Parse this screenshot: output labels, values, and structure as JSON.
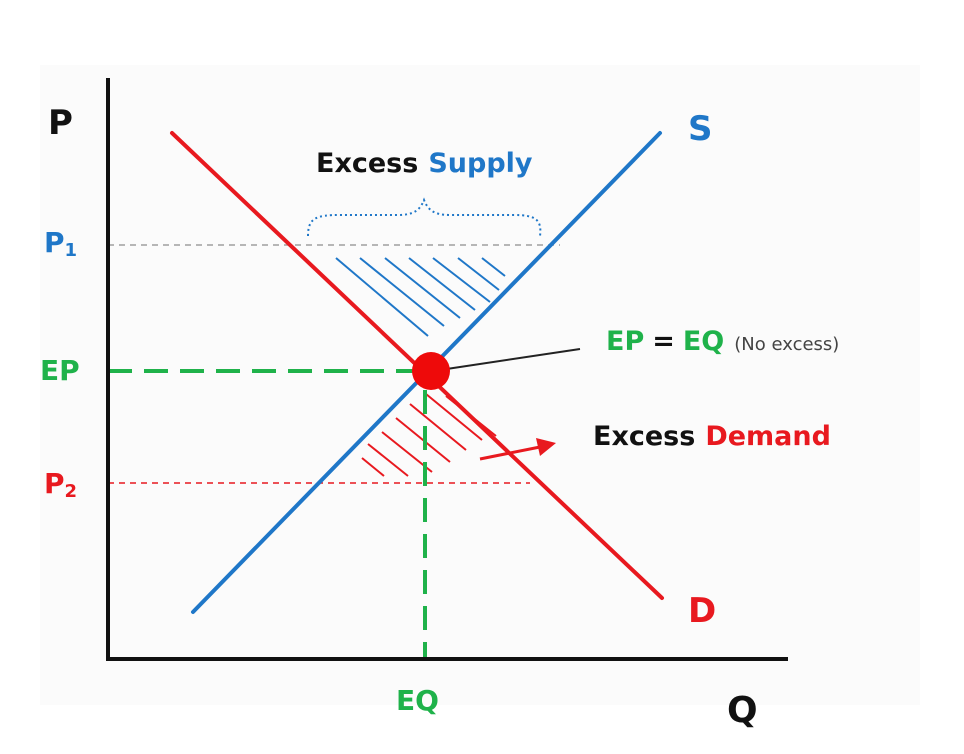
{
  "colors": {
    "supply": "#1f77c8",
    "demand": "#e8191f",
    "equilibrium": "#1fb24a",
    "axis": "#111111",
    "text": "#111111",
    "gray_dash": "#999999"
  },
  "axes": {
    "y_label": "P",
    "x_label": "Q"
  },
  "price_levels": {
    "p1": "P",
    "p1_sub": "1",
    "ep": "EP",
    "p2": "P",
    "p2_sub": "2"
  },
  "quantity_levels": {
    "eq": "EQ"
  },
  "curves": {
    "supply_label": "S",
    "demand_label": "D"
  },
  "annotations": {
    "excess_supply_word1": "Excess",
    "excess_supply_word2": "Supply",
    "equilibrium_left": "EP",
    "equilibrium_equals": "=",
    "equilibrium_right": "EQ",
    "equilibrium_note": "(No excess)",
    "excess_demand_word1": "Excess",
    "excess_demand_word2": "Demand"
  }
}
